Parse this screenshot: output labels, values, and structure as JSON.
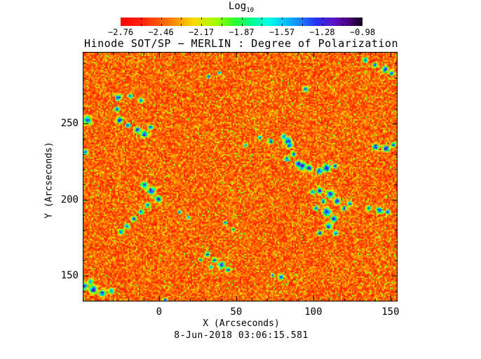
{
  "chart_data": {
    "type": "heatmap",
    "title": "Hinode SOT/SP − MERLIN : Degree of Polarization",
    "xlabel": "X (Arcseconds)",
    "ylabel": "Y (Arcseconds)",
    "timestamp": "8-Jun-2018 03:06:15.581",
    "xlim": [
      -49.5,
      154.6
    ],
    "ylim": [
      132.9,
      297.3
    ],
    "x_major_ticks": [
      0,
      50,
      100,
      150
    ],
    "y_major_ticks": [
      150,
      200,
      250
    ],
    "minor_tick_step": 10,
    "grid": false,
    "colorbar": {
      "scale_label": "Log",
      "scale_sub": "10",
      "orientation": "horizontal",
      "position": "top",
      "vmin": -2.76,
      "vmax": -0.98,
      "tick_labels": [
        "−2.76",
        "−2.46",
        "−2.17",
        "−1.87",
        "−1.57",
        "−1.28",
        "−0.98"
      ],
      "divisions": 12
    },
    "colormap_stops": [
      [
        0.0,
        "#ff0000"
      ],
      [
        0.1,
        "#ff2a00"
      ],
      [
        0.2,
        "#ff7700"
      ],
      [
        0.3,
        "#ffd800"
      ],
      [
        0.4,
        "#9cff00"
      ],
      [
        0.47,
        "#2eff2e"
      ],
      [
        0.54,
        "#00ff8c"
      ],
      [
        0.61,
        "#00ffe6"
      ],
      [
        0.68,
        "#00c3ff"
      ],
      [
        0.75,
        "#1e78ff"
      ],
      [
        0.81,
        "#2830f0"
      ],
      [
        0.88,
        "#5a14c8"
      ],
      [
        0.94,
        "#4b0082"
      ],
      [
        1.0,
        "#140014"
      ]
    ],
    "background_log_value_range": [
      -2.7,
      -2.2
    ],
    "enhanced_log_value_range": [
      -1.8,
      -1.1
    ],
    "content_note": "Mostly red-orange field (low log polarization ~ -2.5) speckled yellow/green, with irregular cyan-blue network patches (higher polarization) at the regions listed below (x, y in arcseconds, approx radius).",
    "enhanced_regions": [
      [
        -26.8,
        267.7,
        2.3
      ],
      [
        -19.1,
        268.6,
        1.8
      ],
      [
        -12.3,
        265.8,
        1.8
      ],
      [
        -27.7,
        259.8,
        1.8
      ],
      [
        -25.9,
        252.8,
        2.3
      ],
      [
        -20.5,
        249.5,
        1.8
      ],
      [
        -14.5,
        246.3,
        2.3
      ],
      [
        -10.0,
        243.5,
        2.3
      ],
      [
        -5.9,
        248.1,
        1.8
      ],
      [
        -46.8,
        252.8,
        2.8
      ],
      [
        -48.2,
        231.9,
        1.8
      ],
      [
        31.8,
        281.6,
        1.4
      ],
      [
        38.6,
        284.0,
        1.4
      ],
      [
        133.2,
        292.3,
        1.8
      ],
      [
        139.5,
        289.1,
        1.8
      ],
      [
        145.9,
        286.3,
        2.3
      ],
      [
        150.5,
        283.9,
        1.8
      ],
      [
        94.5,
        273.3,
        1.8
      ],
      [
        55.9,
        236.5,
        1.4
      ],
      [
        65.0,
        241.2,
        1.4
      ],
      [
        71.8,
        238.8,
        1.8
      ],
      [
        80.5,
        242.1,
        1.8
      ],
      [
        83.2,
        238.8,
        2.8
      ],
      [
        84.1,
        236.5,
        2.3
      ],
      [
        86.8,
        230.5,
        1.8
      ],
      [
        82.3,
        227.2,
        1.8
      ],
      [
        90.0,
        224.0,
        2.3
      ],
      [
        92.3,
        222.6,
        2.8
      ],
      [
        96.8,
        221.2,
        2.3
      ],
      [
        103.6,
        219.3,
        2.3
      ],
      [
        108.2,
        221.2,
        2.8
      ],
      [
        113.6,
        222.6,
        1.8
      ],
      [
        140.0,
        235.1,
        2.3
      ],
      [
        146.8,
        234.2,
        2.3
      ],
      [
        151.4,
        236.5,
        1.8
      ],
      [
        -10.0,
        210.0,
        2.3
      ],
      [
        -5.5,
        206.3,
        2.8
      ],
      [
        -0.9,
        200.7,
        2.3
      ],
      [
        -7.7,
        197.0,
        1.8
      ],
      [
        -12.3,
        192.3,
        1.8
      ],
      [
        -16.8,
        187.7,
        1.8
      ],
      [
        -21.4,
        183.0,
        1.8
      ],
      [
        -25.0,
        179.3,
        1.8
      ],
      [
        12.7,
        192.3,
        1.4
      ],
      [
        18.6,
        188.6,
        1.4
      ],
      [
        42.3,
        185.3,
        1.4
      ],
      [
        47.7,
        180.7,
        1.4
      ],
      [
        99.1,
        205.3,
        1.8
      ],
      [
        103.6,
        206.3,
        2.3
      ],
      [
        110.5,
        204.0,
        2.8
      ],
      [
        115.0,
        199.3,
        2.3
      ],
      [
        105.9,
        199.3,
        1.8
      ],
      [
        101.4,
        194.7,
        1.8
      ],
      [
        108.2,
        192.3,
        2.8
      ],
      [
        112.7,
        187.7,
        2.3
      ],
      [
        109.5,
        183.0,
        2.3
      ],
      [
        103.6,
        178.4,
        1.8
      ],
      [
        114.1,
        178.4,
        1.8
      ],
      [
        119.5,
        194.7,
        1.8
      ],
      [
        123.2,
        197.9,
        1.8
      ],
      [
        135.5,
        194.7,
        1.8
      ],
      [
        142.3,
        193.3,
        2.3
      ],
      [
        147.7,
        192.3,
        1.8
      ],
      [
        78.6,
        149.5,
        1.8
      ],
      [
        73.2,
        150.5,
        1.4
      ],
      [
        26.4,
        160.7,
        1.4
      ],
      [
        30.9,
        164.4,
        1.8
      ],
      [
        35.5,
        160.7,
        1.8
      ],
      [
        40.0,
        157.4,
        2.3
      ],
      [
        44.5,
        154.2,
        1.8
      ],
      [
        33.2,
        156.0,
        1.4
      ],
      [
        -45.0,
        146.7,
        1.8
      ],
      [
        -48.6,
        143.5,
        2.3
      ],
      [
        -43.2,
        141.2,
        2.8
      ],
      [
        -37.3,
        138.8,
        2.3
      ],
      [
        -31.4,
        140.2,
        1.8
      ],
      [
        3.6,
        134.2,
        1.8
      ],
      [
        10.5,
        131.9,
        1.4
      ],
      [
        92.3,
        132.8,
        1.4
      ],
      [
        99.1,
        131.9,
        1.4
      ]
    ]
  }
}
